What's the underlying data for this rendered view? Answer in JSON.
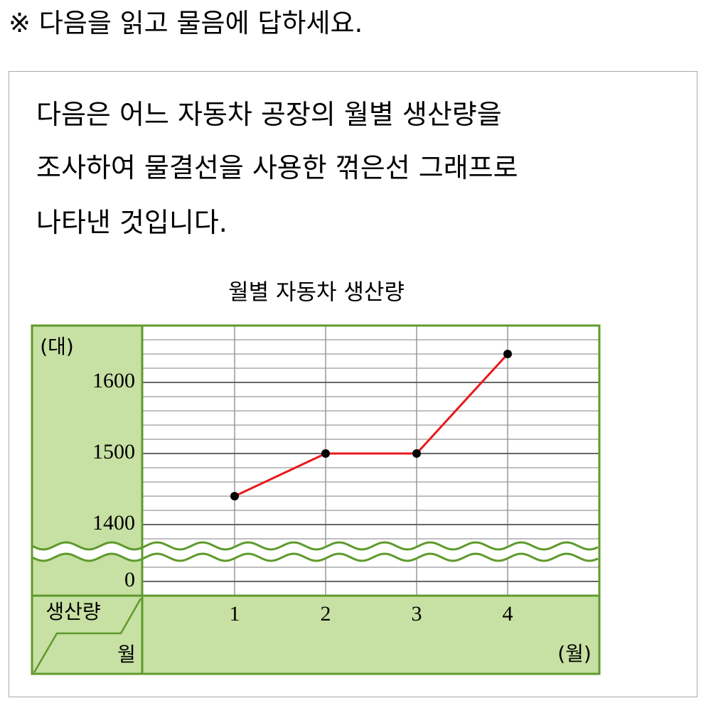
{
  "header": {
    "text": "※ 다음을 읽고 물음에 답하세요."
  },
  "passage": {
    "lines": [
      "다음은 어느 자동차 공장의 월별 생산량을",
      "조사하여 물결선을 사용한 꺾은선 그래프로",
      "나타낸 것입니다."
    ]
  },
  "chart_data": {
    "type": "line",
    "title": "월별 자동차 생산량",
    "y_unit": "(대)",
    "x_unit": "(월)",
    "corner_labels": [
      "생산량",
      "월"
    ],
    "categories": [
      "1",
      "2",
      "3",
      "4"
    ],
    "values": [
      1440,
      1500,
      1500,
      1640
    ],
    "color": "#e8191c",
    "ylim": [
      1380,
      1680
    ],
    "yticks": [
      0,
      1400,
      1500,
      1600
    ],
    "minor_yticks": [
      1380,
      1420,
      1440,
      1460,
      1480,
      1520,
      1540,
      1560,
      1580,
      1620,
      1640,
      1660
    ],
    "axis_break": true,
    "grid": true
  }
}
